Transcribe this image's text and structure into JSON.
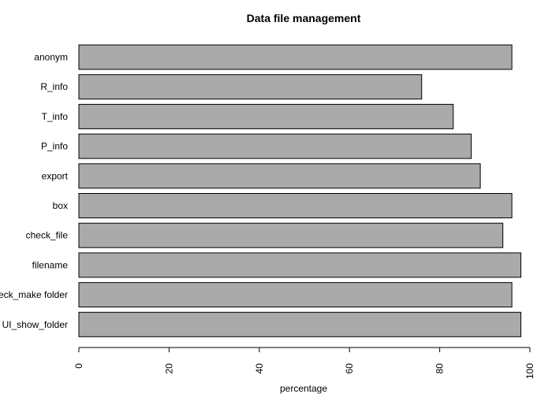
{
  "chart_data": {
    "type": "bar",
    "orientation": "horizontal",
    "title": "Data file management",
    "xlabel": "percentage",
    "ylabel": "",
    "xlim": [
      0,
      100
    ],
    "x_ticks": [
      0,
      20,
      40,
      60,
      80,
      100
    ],
    "x_tick_labels": [
      "0",
      "20",
      "40",
      "60",
      "80",
      "100"
    ],
    "categories": [
      "anonym",
      "R_info",
      "T_info",
      "P_info",
      "export",
      "box",
      "check_file",
      "filename",
      "check_make folder",
      "UI_show_folder"
    ],
    "values": [
      96,
      76,
      83,
      87,
      89,
      96,
      94,
      98,
      96,
      98
    ],
    "grid": false,
    "legend": "none",
    "bar_color": "#aaaaaa",
    "bar_border_color": "#000000"
  }
}
